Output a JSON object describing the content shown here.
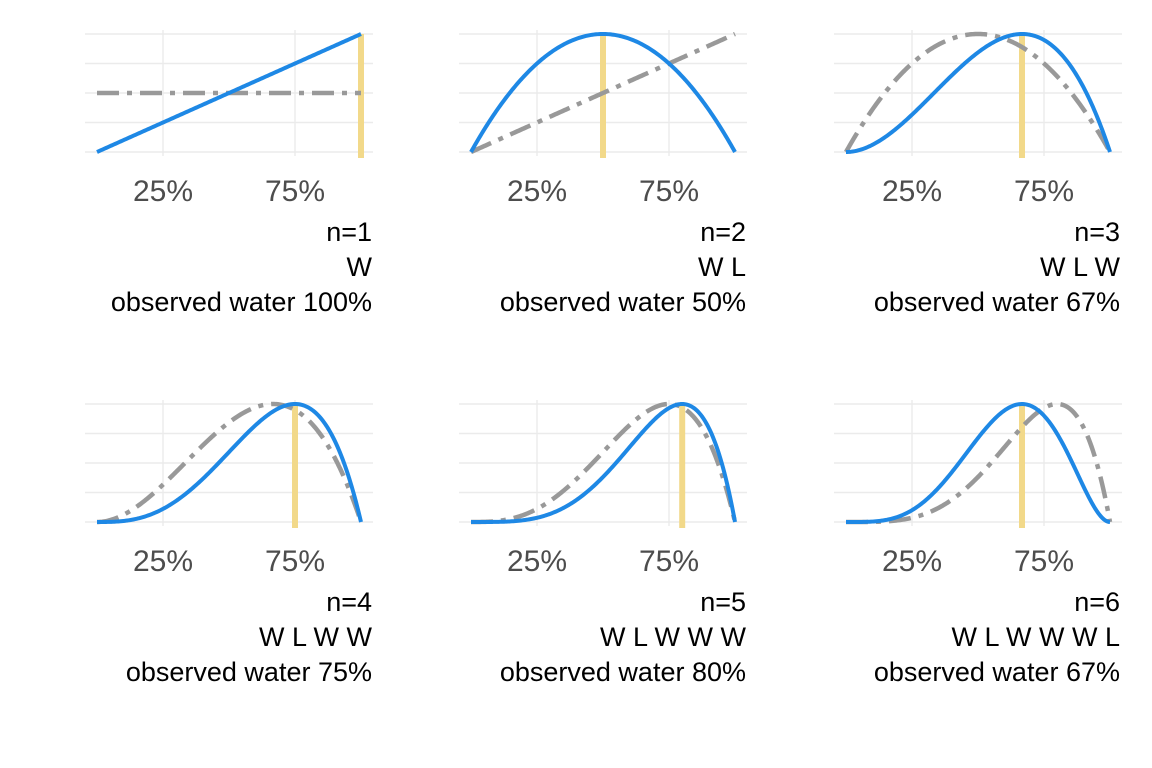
{
  "chart_data": {
    "type": "line",
    "xlim": [
      0,
      1
    ],
    "x_ticks": [
      {
        "value": 0.25,
        "label": "25%"
      },
      {
        "value": 0.75,
        "label": "75%"
      }
    ],
    "grid": true,
    "colors": {
      "posterior": "#1e88e5",
      "prior": "#999999",
      "marker": "#f2d98a",
      "grid": "#ebebeb"
    },
    "series_styles": {
      "posterior": "solid",
      "prior": "dash-dot"
    },
    "panels": [
      {
        "n_label": "n=1",
        "sequence": "W",
        "observed": "observed water 100%",
        "water": 1,
        "land": 0,
        "proportion": 1.0
      },
      {
        "n_label": "n=2",
        "sequence": "W L",
        "observed": "observed water 50%",
        "water": 1,
        "land": 1,
        "proportion": 0.5
      },
      {
        "n_label": "n=3",
        "sequence": "W L W",
        "observed": "observed water 67%",
        "water": 2,
        "land": 1,
        "proportion": 0.6667
      },
      {
        "n_label": "n=4",
        "sequence": "W L W W",
        "observed": "observed water 75%",
        "water": 3,
        "land": 1,
        "proportion": 0.75
      },
      {
        "n_label": "n=5",
        "sequence": "W L W W W",
        "observed": "observed water 80%",
        "water": 4,
        "land": 1,
        "proportion": 0.8
      },
      {
        "n_label": "n=6",
        "sequence": "W L W W W L",
        "observed": "observed water 67%",
        "water": 4,
        "land": 2,
        "proportion": 0.6667
      }
    ]
  }
}
